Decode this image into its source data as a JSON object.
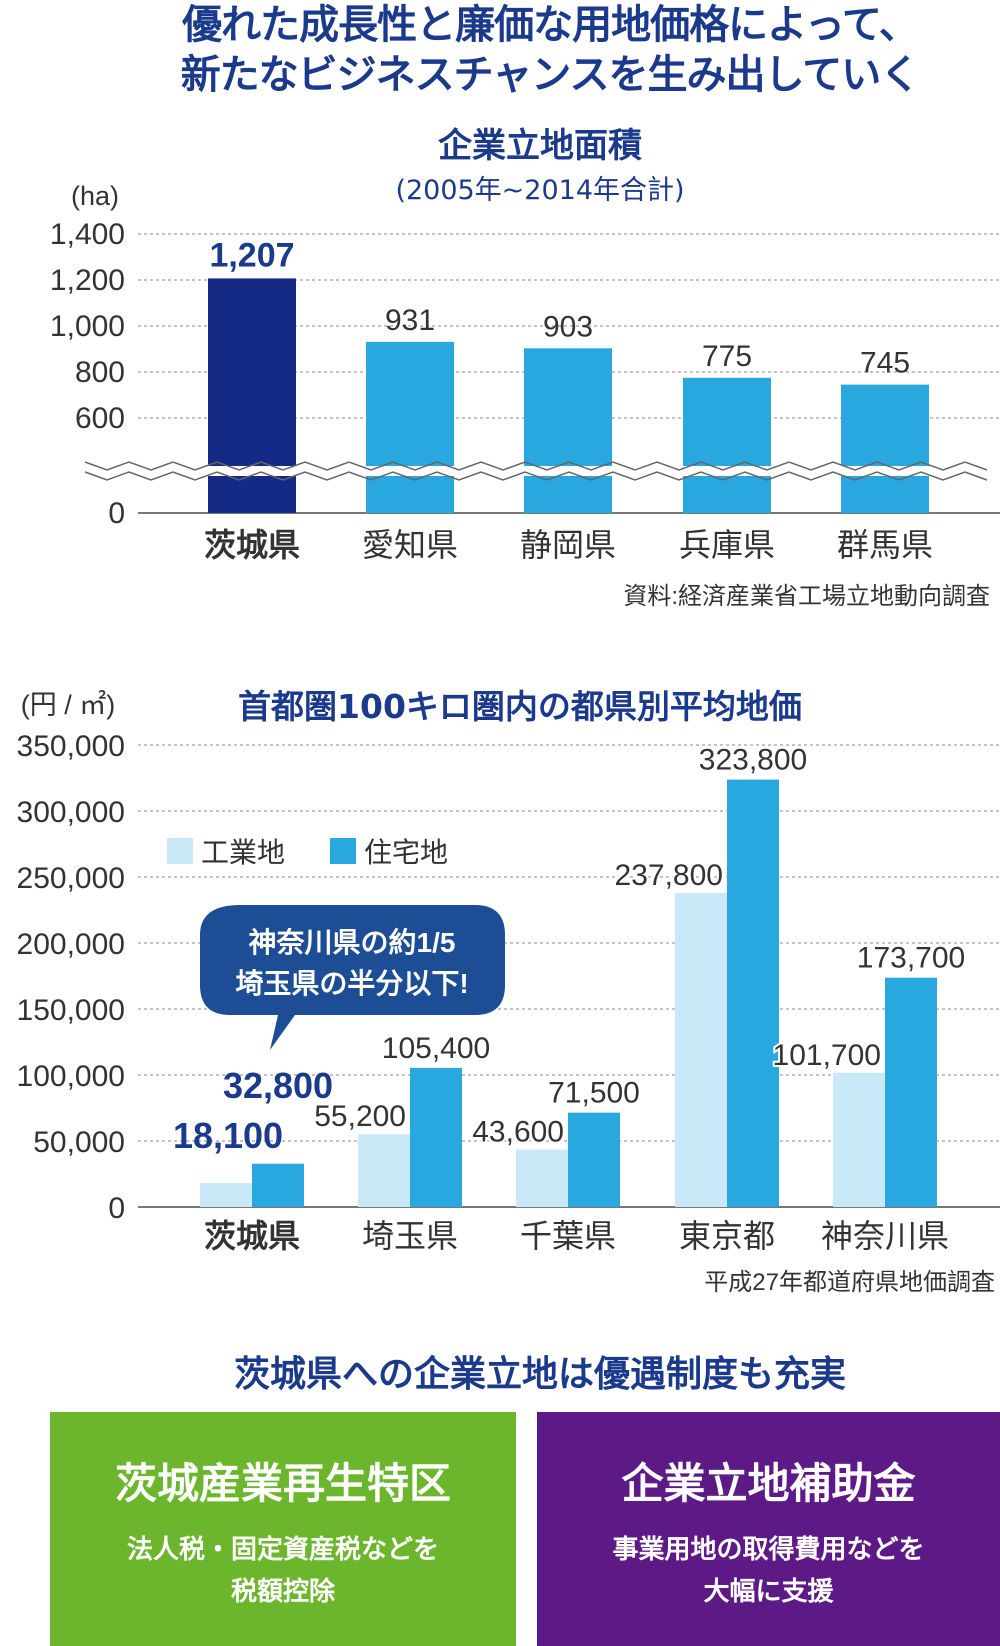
{
  "headline": {
    "line1": "優れた成長性と廉価な用地価格によって、",
    "line2": "新たなビジネスチャンスを生み出していく"
  },
  "chart_data": [
    {
      "type": "bar",
      "title": "企業立地面積",
      "subtitle": "(2005年~2014年合計)",
      "ylabel": "(ha)",
      "yticks": [
        "1,400",
        "1,200",
        "1,000",
        "800",
        "600",
        "0"
      ],
      "ytick_values": [
        1400,
        1200,
        1000,
        800,
        600,
        0
      ],
      "axis_break": true,
      "ylim": [
        0,
        1400
      ],
      "categories": [
        "茨城県",
        "愛知県",
        "静岡県",
        "兵庫県",
        "群馬県"
      ],
      "values": [
        1207,
        931,
        903,
        775,
        745
      ],
      "labels": [
        "1,207",
        "931",
        "903",
        "775",
        "745"
      ],
      "highlight_index": 0,
      "colors": {
        "highlight": "#142a85",
        "normal": "#29a8e0"
      },
      "source": "資料:経済産業省工場立地動向調査"
    },
    {
      "type": "bar",
      "title": "首都圏100キロ圏内の都県別平均地価",
      "ylabel": "(円 / ㎡)",
      "yticks": [
        "350,000",
        "300,000",
        "250,000",
        "200,000",
        "150,000",
        "100,000",
        "50,000",
        "0"
      ],
      "ytick_values": [
        350000,
        300000,
        250000,
        200000,
        150000,
        100000,
        50000,
        0
      ],
      "ylim": [
        0,
        350000
      ],
      "categories": [
        "茨城県",
        "埼玉県",
        "千葉県",
        "東京都",
        "神奈川県"
      ],
      "series": [
        {
          "name": "工業地",
          "color": "#c9e8f8",
          "values": [
            18100,
            55200,
            43600,
            237800,
            101700
          ],
          "labels": [
            "18,100",
            "55,200",
            "43,600",
            "237,800",
            "101,700"
          ]
        },
        {
          "name": "住宅地",
          "color": "#29a8e0",
          "values": [
            32800,
            105400,
            71500,
            323800,
            173700
          ],
          "labels": [
            "32,800",
            "105,400",
            "71,500",
            "323,800",
            "173,700"
          ]
        }
      ],
      "legend": "top-left",
      "callout": {
        "line1": "神奈川県の約1/5",
        "line2": "埼玉県の半分以下!"
      },
      "source": "平成27年都道府県地価調査"
    }
  ],
  "incentives": {
    "title": "茨城県への企業立地は優遇制度も充実",
    "cards": [
      {
        "title": "茨城産業再生特区",
        "line1": "法人税・固定資産税などを",
        "line2": "税額控除",
        "color": "#6cb62d"
      },
      {
        "title": "企業立地補助金",
        "line1": "事業用地の取得費用などを",
        "line2": "大幅に支援",
        "color": "#5d1a87"
      }
    ]
  }
}
